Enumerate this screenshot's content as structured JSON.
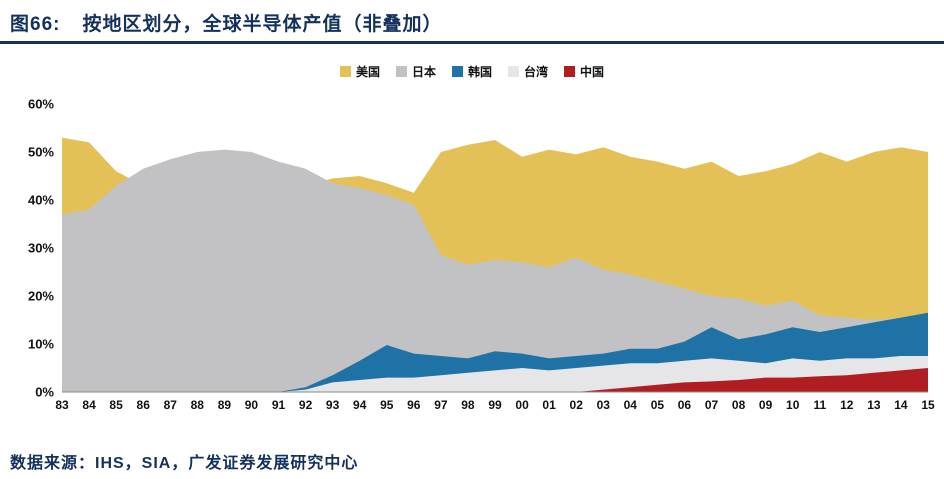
{
  "header": {
    "title_prefix": "图66:",
    "title": "按地区划分，全球半导体产值（非叠加）"
  },
  "footer": {
    "source": "数据来源：IHS，SIA，广发证券发展研究中心"
  },
  "colors": {
    "title_navy": "#14315E",
    "underline": "#14315E",
    "axis_text": "#111111",
    "axis_line": "#8a8a8a"
  },
  "chart_data": {
    "type": "area",
    "stacked": false,
    "title": "按地区划分，全球半导体产值（非叠加）",
    "xlabel": "",
    "ylabel": "",
    "ylim": [
      0,
      60
    ],
    "ytick_labels": [
      "0%",
      "10%",
      "20%",
      "30%",
      "40%",
      "50%",
      "60%"
    ],
    "ytick_values": [
      0,
      10,
      20,
      30,
      40,
      50,
      60
    ],
    "legend_position": "top",
    "grid": false,
    "x": [
      "83",
      "84",
      "85",
      "86",
      "87",
      "88",
      "89",
      "90",
      "91",
      "92",
      "93",
      "94",
      "95",
      "96",
      "97",
      "98",
      "99",
      "00",
      "01",
      "02",
      "03",
      "04",
      "05",
      "06",
      "07",
      "08",
      "09",
      "10",
      "11",
      "12",
      "13",
      "14",
      "15"
    ],
    "series": [
      {
        "name": "美国",
        "color": "#E4C157",
        "values": [
          53,
          52,
          46,
          43,
          40,
          38,
          37,
          38,
          40,
          43,
          44.5,
          45,
          43.5,
          41.5,
          50,
          51.5,
          52.5,
          49,
          50.5,
          49.5,
          51,
          49,
          48,
          46.5,
          48,
          45,
          46,
          47.5,
          50,
          48,
          50,
          51,
          50
        ]
      },
      {
        "name": "日本",
        "color": "#C2C2C4",
        "values": [
          37,
          38,
          43,
          46.5,
          48.5,
          50,
          50.5,
          50,
          48,
          46.5,
          43.5,
          42.5,
          41,
          39,
          28.5,
          26.5,
          27.5,
          27,
          26,
          28,
          25.5,
          24.5,
          23,
          21.5,
          20,
          19.5,
          18,
          19,
          16,
          15.5,
          15,
          15.5,
          15
        ]
      },
      {
        "name": "韩国",
        "color": "#1F72A5",
        "values": [
          0,
          0,
          0,
          0,
          0,
          0,
          0,
          0,
          0,
          1,
          3.5,
          6.5,
          9.8,
          8,
          7.5,
          7,
          8.5,
          8,
          7,
          7.5,
          8,
          9,
          9,
          10.5,
          13.5,
          11,
          12,
          13.5,
          12.5,
          13.5,
          14.5,
          15.5,
          16.5
        ]
      },
      {
        "name": "台湾",
        "color": "#E6E6E8",
        "values": [
          0,
          0,
          0,
          0,
          0,
          0,
          0,
          0,
          0,
          0.5,
          2,
          2.5,
          3,
          3,
          3.5,
          4,
          4.5,
          5,
          4.5,
          5,
          5.5,
          6,
          6,
          6.5,
          7,
          6.5,
          6,
          7,
          6.5,
          7,
          7,
          7.5,
          7.5
        ]
      },
      {
        "name": "中国",
        "color": "#B01E23",
        "values": [
          0,
          0,
          0,
          0,
          0,
          0,
          0,
          0,
          0,
          0,
          0,
          0,
          0,
          0,
          0,
          0,
          0,
          0,
          0,
          0,
          0.5,
          1,
          1.5,
          2,
          2.2,
          2.5,
          3,
          3,
          3.3,
          3.5,
          4,
          4.5,
          5
        ]
      }
    ]
  }
}
